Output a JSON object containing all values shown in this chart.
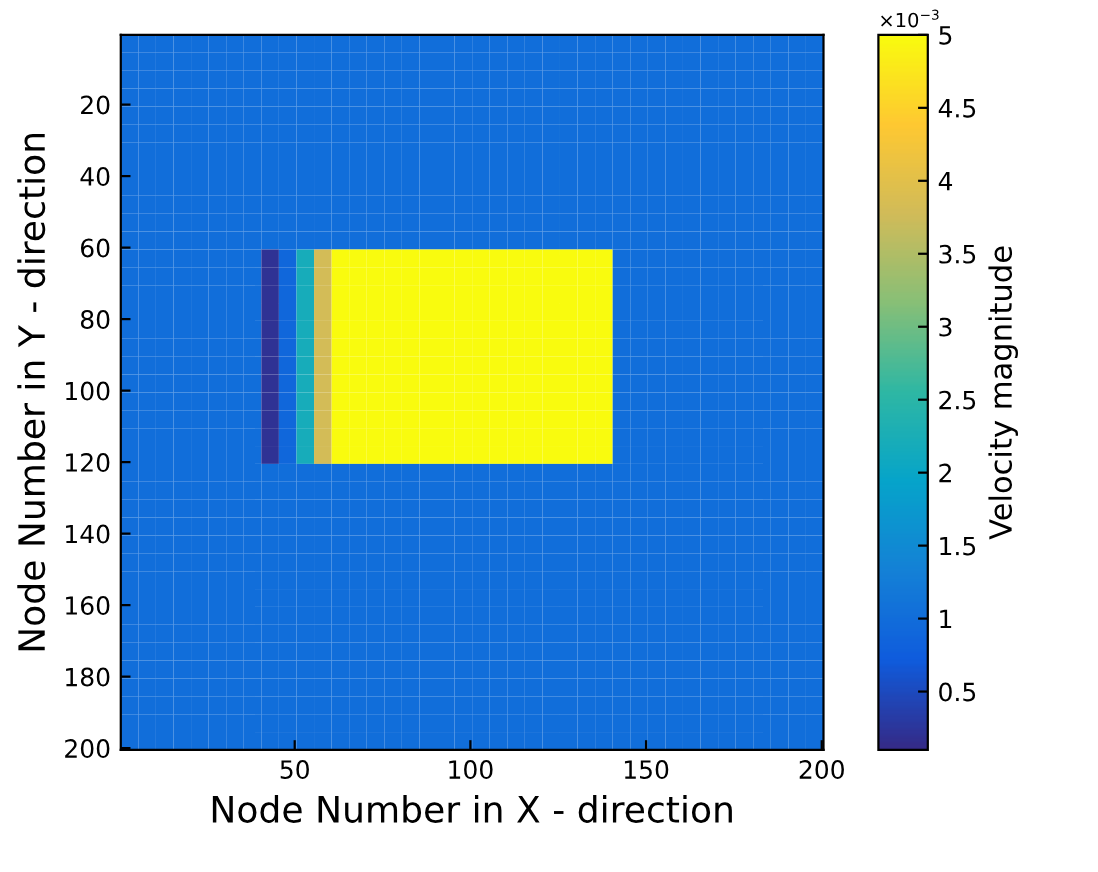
{
  "chart_data": {
    "type": "heatmap",
    "xlabel": "Node Number in X - direction",
    "ylabel": "Node Number in Y - direction",
    "clabel": "Velocity magnitude",
    "x": [
      3,
      8,
      13,
      18,
      23,
      28,
      33,
      38,
      43,
      48,
      53,
      58,
      63,
      68,
      73,
      78,
      83,
      88,
      93,
      98,
      103,
      108,
      113,
      118,
      123,
      128,
      133,
      138,
      143,
      148,
      153,
      158,
      163,
      168,
      173,
      178,
      183,
      188,
      193,
      198
    ],
    "y": [
      3,
      8,
      13,
      18,
      23,
      28,
      33,
      38,
      43,
      48,
      53,
      58,
      63,
      68,
      73,
      78,
      83,
      88,
      93,
      98,
      103,
      108,
      113,
      118,
      123,
      128,
      133,
      138,
      143,
      148,
      153,
      158,
      163,
      168,
      173,
      178,
      183,
      188,
      193,
      198
    ],
    "cells": [
      [
        1,
        1,
        1,
        1,
        1,
        1,
        1,
        1,
        1,
        1,
        1,
        1,
        1,
        1,
        1,
        1,
        1,
        1,
        1,
        1,
        1,
        1,
        1,
        1,
        1,
        1,
        1,
        1,
        1,
        1,
        1,
        1,
        1,
        1,
        1,
        1,
        1,
        1,
        1,
        1
      ],
      [
        1,
        1,
        1,
        1,
        1,
        1,
        1,
        1,
        1,
        1,
        1,
        1,
        1,
        1,
        1,
        1,
        1,
        1,
        1,
        1,
        1,
        1,
        1,
        1,
        1,
        1,
        1,
        1,
        1,
        1,
        1,
        1,
        1,
        1,
        1,
        1,
        1,
        1,
        1,
        1
      ],
      [
        1,
        1,
        1,
        1,
        1,
        1,
        1,
        1,
        1,
        1,
        1,
        1,
        1,
        1,
        1,
        1,
        1,
        1,
        1,
        1,
        1,
        1,
        1,
        1,
        1,
        1,
        1,
        1,
        1,
        1,
        1,
        1,
        1,
        1,
        1,
        1,
        1,
        1,
        1,
        1
      ],
      [
        1,
        1,
        1,
        1,
        1,
        1,
        1,
        1,
        1,
        1,
        1,
        1,
        1,
        1,
        1,
        1,
        1,
        1,
        1,
        1,
        1,
        1,
        1,
        1,
        1,
        1,
        1,
        1,
        1,
        1,
        1,
        1,
        1,
        1,
        1,
        1,
        1,
        1,
        1,
        1
      ],
      [
        1,
        1,
        1,
        1,
        1,
        1,
        1,
        1,
        1,
        1,
        1,
        1,
        1,
        1,
        1,
        1,
        1,
        1,
        1,
        1,
        1,
        1,
        1,
        1,
        1,
        1,
        1,
        1,
        1,
        1,
        1,
        1,
        1,
        1,
        1,
        1,
        1,
        1,
        1,
        1
      ],
      [
        1,
        1,
        1,
        1,
        1,
        1,
        1,
        1,
        1,
        1,
        1,
        1,
        1,
        1,
        1,
        1,
        1,
        1,
        1,
        1,
        1,
        1,
        1,
        1,
        1,
        1,
        1,
        1,
        1,
        1,
        1,
        1,
        1,
        1,
        1,
        1,
        1,
        1,
        1,
        1
      ],
      [
        1,
        1,
        1,
        1,
        1,
        1,
        1,
        1,
        1,
        1,
        1,
        1,
        1,
        1,
        1,
        1,
        1,
        1,
        1,
        1,
        1,
        1,
        1,
        1,
        1,
        1,
        1,
        1,
        1,
        1,
        1,
        1,
        1,
        1,
        1,
        1,
        1,
        1,
        1,
        1
      ],
      [
        1,
        1,
        1,
        1,
        1,
        1,
        1,
        1,
        1,
        1,
        1,
        1,
        1,
        1,
        1,
        1,
        1,
        1,
        1,
        1,
        1,
        1,
        1,
        1,
        1,
        1,
        1,
        1,
        1,
        1,
        1,
        1,
        1,
        1,
        1,
        1,
        1,
        1,
        1,
        1
      ],
      [
        1,
        1,
        1,
        1,
        1,
        1,
        1,
        1,
        1,
        1,
        1,
        1,
        1,
        1,
        1,
        1,
        1,
        1,
        1,
        1,
        1,
        1,
        1,
        1,
        1,
        1,
        1,
        1,
        1,
        1,
        1,
        1,
        1,
        1,
        1,
        1,
        1,
        1,
        1,
        1
      ],
      [
        1,
        1,
        1,
        1,
        1,
        1,
        1,
        1,
        1,
        1,
        1,
        1,
        1,
        1,
        1,
        1,
        1,
        1,
        1,
        1,
        1,
        1,
        1,
        1,
        1,
        1,
        1,
        1,
        1,
        1,
        1,
        1,
        1,
        1,
        1,
        1,
        1,
        1,
        1,
        1
      ],
      [
        1,
        1,
        1,
        1,
        1,
        1,
        1,
        1,
        1,
        1,
        1,
        1,
        1,
        1,
        1,
        1,
        1,
        1,
        1,
        1,
        1,
        1,
        1,
        1,
        1,
        1,
        1,
        1,
        1,
        1,
        1,
        1,
        1,
        1,
        1,
        1,
        1,
        1,
        1,
        1
      ],
      [
        1,
        1,
        1,
        1,
        1,
        1,
        1,
        1,
        1,
        1,
        1,
        1,
        1,
        1,
        1,
        1,
        1,
        1,
        1,
        1,
        1,
        1,
        1,
        1,
        1,
        1,
        1,
        1,
        1,
        1,
        1,
        1,
        1,
        1,
        1,
        1,
        1,
        1,
        1,
        1
      ],
      [
        1,
        1,
        1,
        1,
        1,
        1,
        1,
        1,
        0.2,
        0.9,
        2.2,
        3.8,
        5,
        5,
        5,
        5,
        5,
        5,
        5,
        5,
        5,
        5,
        5,
        5,
        5,
        5,
        5,
        5,
        1,
        1,
        1,
        1,
        1,
        1,
        1,
        1,
        1,
        1,
        1,
        1
      ],
      [
        1,
        1,
        1,
        1,
        1,
        1,
        1,
        1,
        0.2,
        0.9,
        2.2,
        3.8,
        5,
        5,
        5,
        5,
        5,
        5,
        5,
        5,
        5,
        5,
        5,
        5,
        5,
        5,
        5,
        5,
        1,
        1,
        1,
        1,
        1,
        1,
        1,
        1,
        1,
        1,
        1,
        1
      ],
      [
        1,
        1,
        1,
        1,
        1,
        1,
        1,
        1,
        0.2,
        0.9,
        2.2,
        3.8,
        5,
        5,
        5,
        5,
        5,
        5,
        5,
        5,
        5,
        5,
        5,
        5,
        5,
        5,
        5,
        5,
        1,
        1,
        1,
        1,
        1,
        1,
        1,
        1,
        1,
        1,
        1,
        1
      ],
      [
        1,
        1,
        1,
        1,
        1,
        1,
        1,
        1,
        0.2,
        0.9,
        2.2,
        3.8,
        5,
        5,
        5,
        5,
        5,
        5,
        5,
        5,
        5,
        5,
        5,
        5,
        5,
        5,
        5,
        5,
        1,
        1,
        1,
        1,
        1,
        1,
        1,
        1,
        1,
        1,
        1,
        1
      ],
      [
        1,
        1,
        1,
        1,
        1,
        1,
        1,
        1,
        0.2,
        0.9,
        2.2,
        3.8,
        5,
        5,
        5,
        5,
        5,
        5,
        5,
        5,
        5,
        5,
        5,
        5,
        5,
        5,
        5,
        5,
        1,
        1,
        1,
        1,
        1,
        1,
        1,
        1,
        1,
        1,
        1,
        1
      ],
      [
        1,
        1,
        1,
        1,
        1,
        1,
        1,
        1,
        0.2,
        0.9,
        2.2,
        3.8,
        5,
        5,
        5,
        5,
        5,
        5,
        5,
        5,
        5,
        5,
        5,
        5,
        5,
        5,
        5,
        5,
        1,
        1,
        1,
        1,
        1,
        1,
        1,
        1,
        1,
        1,
        1,
        1
      ],
      [
        1,
        1,
        1,
        1,
        1,
        1,
        1,
        1,
        0.2,
        0.9,
        2.2,
        3.8,
        5,
        5,
        5,
        5,
        5,
        5,
        5,
        5,
        5,
        5,
        5,
        5,
        5,
        5,
        5,
        5,
        1,
        1,
        1,
        1,
        1,
        1,
        1,
        1,
        1,
        1,
        1,
        1
      ],
      [
        1,
        1,
        1,
        1,
        1,
        1,
        1,
        1,
        0.2,
        0.9,
        2.2,
        3.8,
        5,
        5,
        5,
        5,
        5,
        5,
        5,
        5,
        5,
        5,
        5,
        5,
        5,
        5,
        5,
        5,
        1,
        1,
        1,
        1,
        1,
        1,
        1,
        1,
        1,
        1,
        1,
        1
      ],
      [
        1,
        1,
        1,
        1,
        1,
        1,
        1,
        1,
        0.2,
        0.9,
        2.2,
        3.8,
        5,
        5,
        5,
        5,
        5,
        5,
        5,
        5,
        5,
        5,
        5,
        5,
        5,
        5,
        5,
        5,
        1,
        1,
        1,
        1,
        1,
        1,
        1,
        1,
        1,
        1,
        1,
        1
      ],
      [
        1,
        1,
        1,
        1,
        1,
        1,
        1,
        1,
        0.2,
        0.9,
        2.2,
        3.8,
        5,
        5,
        5,
        5,
        5,
        5,
        5,
        5,
        5,
        5,
        5,
        5,
        5,
        5,
        5,
        5,
        1,
        1,
        1,
        1,
        1,
        1,
        1,
        1,
        1,
        1,
        1,
        1
      ],
      [
        1,
        1,
        1,
        1,
        1,
        1,
        1,
        1,
        0.2,
        0.9,
        2.2,
        3.8,
        5,
        5,
        5,
        5,
        5,
        5,
        5,
        5,
        5,
        5,
        5,
        5,
        5,
        5,
        5,
        5,
        1,
        1,
        1,
        1,
        1,
        1,
        1,
        1,
        1,
        1,
        1,
        1
      ],
      [
        1,
        1,
        1,
        1,
        1,
        1,
        1,
        1,
        0.2,
        0.9,
        2.2,
        3.8,
        5,
        5,
        5,
        5,
        5,
        5,
        5,
        5,
        5,
        5,
        5,
        5,
        5,
        5,
        5,
        5,
        1,
        1,
        1,
        1,
        1,
        1,
        1,
        1,
        1,
        1,
        1,
        1
      ],
      [
        1,
        1,
        1,
        1,
        1,
        1,
        1,
        1,
        1,
        1,
        1,
        1,
        1,
        1,
        1,
        1,
        1,
        1,
        1,
        1,
        1,
        1,
        1,
        1,
        1,
        1,
        1,
        1,
        1,
        1,
        1,
        1,
        1,
        1,
        1,
        1,
        1,
        1,
        1,
        1
      ],
      [
        1,
        1,
        1,
        1,
        1,
        1,
        1,
        1,
        1,
        1,
        1,
        1,
        1,
        1,
        1,
        1,
        1,
        1,
        1,
        1,
        1,
        1,
        1,
        1,
        1,
        1,
        1,
        1,
        1,
        1,
        1,
        1,
        1,
        1,
        1,
        1,
        1,
        1,
        1,
        1
      ],
      [
        1,
        1,
        1,
        1,
        1,
        1,
        1,
        1,
        1,
        1,
        1,
        1,
        1,
        1,
        1,
        1,
        1,
        1,
        1,
        1,
        1,
        1,
        1,
        1,
        1,
        1,
        1,
        1,
        1,
        1,
        1,
        1,
        1,
        1,
        1,
        1,
        1,
        1,
        1,
        1
      ],
      [
        1,
        1,
        1,
        1,
        1,
        1,
        1,
        1,
        1,
        1,
        1,
        1,
        1,
        1,
        1,
        1,
        1,
        1,
        1,
        1,
        1,
        1,
        1,
        1,
        1,
        1,
        1,
        1,
        1,
        1,
        1,
        1,
        1,
        1,
        1,
        1,
        1,
        1,
        1,
        1
      ],
      [
        1,
        1,
        1,
        1,
        1,
        1,
        1,
        1,
        1,
        1,
        1,
        1,
        1,
        1,
        1,
        1,
        1,
        1,
        1,
        1,
        1,
        1,
        1,
        1,
        1,
        1,
        1,
        1,
        1,
        1,
        1,
        1,
        1,
        1,
        1,
        1,
        1,
        1,
        1,
        1
      ],
      [
        1,
        1,
        1,
        1,
        1,
        1,
        1,
        1,
        1,
        1,
        1,
        1,
        1,
        1,
        1,
        1,
        1,
        1,
        1,
        1,
        1,
        1,
        1,
        1,
        1,
        1,
        1,
        1,
        1,
        1,
        1,
        1,
        1,
        1,
        1,
        1,
        1,
        1,
        1,
        1
      ],
      [
        1,
        1,
        1,
        1,
        1,
        1,
        1,
        1,
        1,
        1,
        1,
        1,
        1,
        1,
        1,
        1,
        1,
        1,
        1,
        1,
        1,
        1,
        1,
        1,
        1,
        1,
        1,
        1,
        1,
        1,
        1,
        1,
        1,
        1,
        1,
        1,
        1,
        1,
        1,
        1
      ],
      [
        1,
        1,
        1,
        1,
        1,
        1,
        1,
        1,
        1,
        1,
        1,
        1,
        1,
        1,
        1,
        1,
        1,
        1,
        1,
        1,
        1,
        1,
        1,
        1,
        1,
        1,
        1,
        1,
        1,
        1,
        1,
        1,
        1,
        1,
        1,
        1,
        1,
        1,
        1,
        1
      ],
      [
        1,
        1,
        1,
        1,
        1,
        1,
        1,
        1,
        1,
        1,
        1,
        1,
        1,
        1,
        1,
        1,
        1,
        1,
        1,
        1,
        1,
        1,
        1,
        1,
        1,
        1,
        1,
        1,
        1,
        1,
        1,
        1,
        1,
        1,
        1,
        1,
        1,
        1,
        1,
        1
      ],
      [
        1,
        1,
        1,
        1,
        1,
        1,
        1,
        1,
        1,
        1,
        1,
        1,
        1,
        1,
        1,
        1,
        1,
        1,
        1,
        1,
        1,
        1,
        1,
        1,
        1,
        1,
        1,
        1,
        1,
        1,
        1,
        1,
        1,
        1,
        1,
        1,
        1,
        1,
        1,
        1
      ],
      [
        1,
        1,
        1,
        1,
        1,
        1,
        1,
        1,
        1,
        1,
        1,
        1,
        1,
        1,
        1,
        1,
        1,
        1,
        1,
        1,
        1,
        1,
        1,
        1,
        1,
        1,
        1,
        1,
        1,
        1,
        1,
        1,
        1,
        1,
        1,
        1,
        1,
        1,
        1,
        1
      ],
      [
        1,
        1,
        1,
        1,
        1,
        1,
        1,
        1,
        1,
        1,
        1,
        1,
        1,
        1,
        1,
        1,
        1,
        1,
        1,
        1,
        1,
        1,
        1,
        1,
        1,
        1,
        1,
        1,
        1,
        1,
        1,
        1,
        1,
        1,
        1,
        1,
        1,
        1,
        1,
        1
      ],
      [
        1,
        1,
        1,
        1,
        1,
        1,
        1,
        1,
        1,
        1,
        1,
        1,
        1,
        1,
        1,
        1,
        1,
        1,
        1,
        1,
        1,
        1,
        1,
        1,
        1,
        1,
        1,
        1,
        1,
        1,
        1,
        1,
        1,
        1,
        1,
        1,
        1,
        1,
        1,
        1
      ],
      [
        1,
        1,
        1,
        1,
        1,
        1,
        1,
        1,
        1,
        1,
        1,
        1,
        1,
        1,
        1,
        1,
        1,
        1,
        1,
        1,
        1,
        1,
        1,
        1,
        1,
        1,
        1,
        1,
        1,
        1,
        1,
        1,
        1,
        1,
        1,
        1,
        1,
        1,
        1,
        1
      ],
      [
        1,
        1,
        1,
        1,
        1,
        1,
        1,
        1,
        1,
        1,
        1,
        1,
        1,
        1,
        1,
        1,
        1,
        1,
        1,
        1,
        1,
        1,
        1,
        1,
        1,
        1,
        1,
        1,
        1,
        1,
        1,
        1,
        1,
        1,
        1,
        1,
        1,
        1,
        1,
        1
      ],
      [
        1,
        1,
        1,
        1,
        1,
        1,
        1,
        1,
        1,
        1,
        1,
        1,
        1,
        1,
        1,
        1,
        1,
        1,
        1,
        1,
        1,
        1,
        1,
        1,
        1,
        1,
        1,
        1,
        1,
        1,
        1,
        1,
        1,
        1,
        1,
        1,
        1,
        1,
        1,
        1
      ]
    ],
    "xlim": [
      0.5,
      200.5
    ],
    "ylim": [
      200.5,
      0.5
    ],
    "xticks": [
      50,
      100,
      150,
      200
    ],
    "yticks": [
      20,
      40,
      60,
      80,
      100,
      120,
      140,
      160,
      180,
      200
    ],
    "clim": [
      0.1,
      5
    ],
    "cticks": [
      0.5,
      1,
      1.5,
      2,
      2.5,
      3,
      3.5,
      4,
      4.5,
      5
    ],
    "annotations": [
      "×10$^{−3}$"
    ]
  }
}
